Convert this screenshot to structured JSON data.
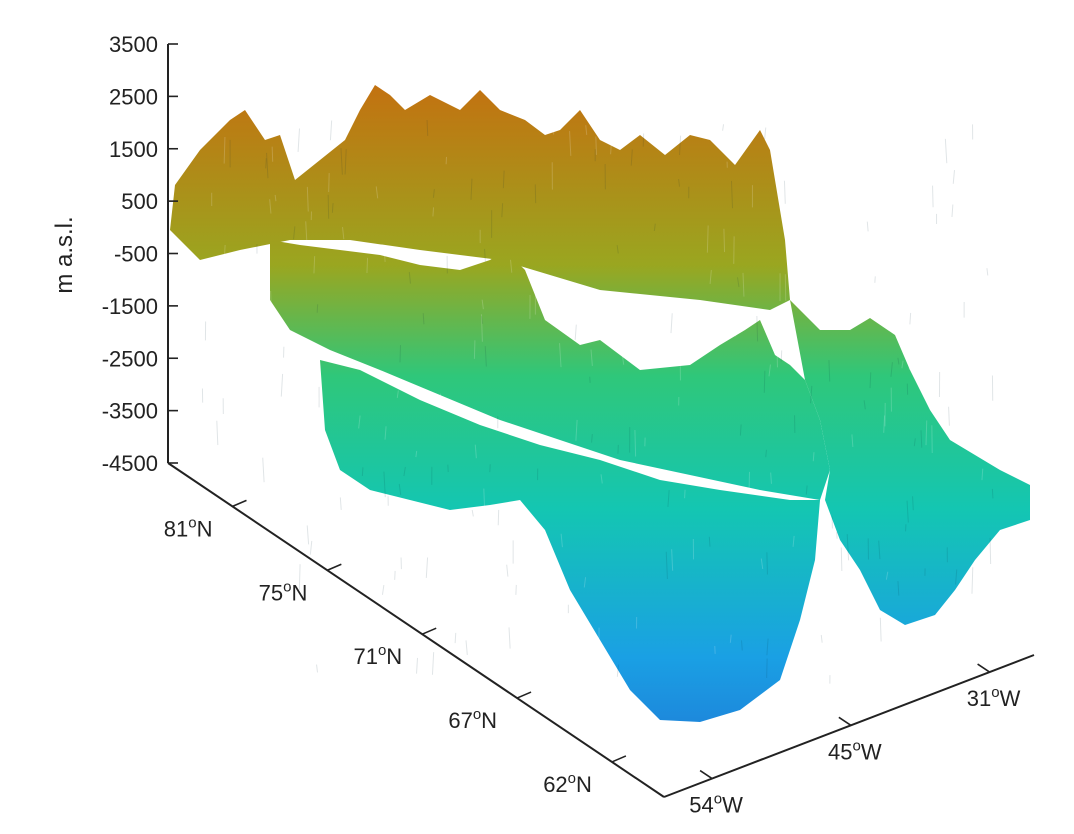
{
  "chart_data": {
    "type": "surface",
    "zlabel": "m a.s.l.",
    "z_ticks": [
      "3500",
      "2500",
      "1500",
      "500",
      "-500",
      "-1500",
      "-2500",
      "-3500",
      "-4500"
    ],
    "zlim": [
      -4500,
      3500
    ],
    "lat_ticks": [
      {
        "value": "81",
        "sup": "o",
        "dir": "N"
      },
      {
        "value": "75",
        "sup": "o",
        "dir": "N"
      },
      {
        "value": "71",
        "sup": "o",
        "dir": "N"
      },
      {
        "value": "67",
        "sup": "o",
        "dir": "N"
      },
      {
        "value": "62",
        "sup": "o",
        "dir": "N"
      }
    ],
    "lon_ticks": [
      {
        "value": "54",
        "sup": "o",
        "dir": "W"
      },
      {
        "value": "45",
        "sup": "o",
        "dir": "W"
      },
      {
        "value": "31",
        "sup": "o",
        "dir": "W"
      }
    ],
    "colormap": [
      "#1a6fd6",
      "#19a6e0",
      "#16c8a8",
      "#5cc84a",
      "#9aa622",
      "#c07a12"
    ],
    "grid": false
  }
}
